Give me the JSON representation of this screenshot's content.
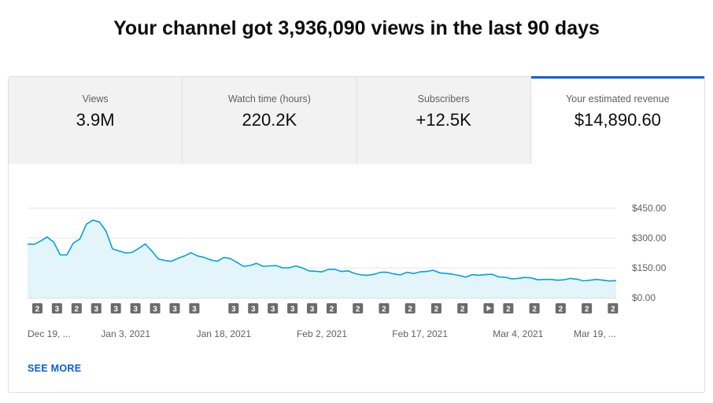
{
  "headline": "Your channel got 3,936,090 views in the last 90 days",
  "tabs": [
    {
      "label": "Views",
      "value": "3.9M",
      "active": false
    },
    {
      "label": "Watch time (hours)",
      "value": "220.2K",
      "active": false
    },
    {
      "label": "Subscribers",
      "value": "+12.5K",
      "active": false
    },
    {
      "label": "Your estimated revenue",
      "value": "$14,890.60",
      "active": true
    }
  ],
  "chart_data": {
    "type": "area",
    "title": "",
    "xlabel": "",
    "ylabel": "",
    "ylim": [
      0,
      450
    ],
    "y_ticks": [
      "$450.00",
      "$300.00",
      "$150.00",
      "$0.00"
    ],
    "y_tick_values": [
      450,
      300,
      150,
      0
    ],
    "x_tick_labels": [
      "Dec 19, ...",
      "Jan 3, 2021",
      "Jan 18, 2021",
      "Feb 2, 2021",
      "Feb 17, 2021",
      "Mar 4, 2021",
      "Mar 19, ..."
    ],
    "x_tick_days": [
      0,
      15,
      30,
      45,
      60,
      75,
      90
    ],
    "series": [
      {
        "name": "",
        "color": "#00a4d6",
        "fill": "#e3f4fa",
        "values": [
          270,
          268,
          285,
          305,
          280,
          215,
          215,
          275,
          295,
          370,
          390,
          380,
          335,
          245,
          235,
          225,
          228,
          248,
          270,
          235,
          195,
          187,
          183,
          198,
          210,
          226,
          210,
          203,
          190,
          183,
          202,
          197,
          178,
          158,
          162,
          173,
          158,
          160,
          162,
          150,
          150,
          160,
          150,
          135,
          133,
          130,
          143,
          143,
          132,
          135,
          122,
          115,
          113,
          118,
          128,
          128,
          120,
          115,
          128,
          122,
          130,
          132,
          138,
          125,
          122,
          118,
          112,
          104,
          116,
          113,
          116,
          118,
          105,
          103,
          95,
          97,
          102,
          100,
          90,
          92,
          92,
          88,
          90,
          97,
          93,
          85,
          88,
          92,
          88,
          84,
          86
        ]
      }
    ],
    "annotations": [
      {
        "day": 1.5,
        "label": "2"
      },
      {
        "day": 4.5,
        "label": "3"
      },
      {
        "day": 7.5,
        "label": "2"
      },
      {
        "day": 10.5,
        "label": "3"
      },
      {
        "day": 13.5,
        "label": "3"
      },
      {
        "day": 16.5,
        "label": "3"
      },
      {
        "day": 19.5,
        "label": "3"
      },
      {
        "day": 22.5,
        "label": "3"
      },
      {
        "day": 25.5,
        "label": "3"
      },
      {
        "day": 31.5,
        "label": "3"
      },
      {
        "day": 34.5,
        "label": "3"
      },
      {
        "day": 37.5,
        "label": "3"
      },
      {
        "day": 40.5,
        "label": "3"
      },
      {
        "day": 43.5,
        "label": "3"
      },
      {
        "day": 46.5,
        "label": "2"
      },
      {
        "day": 50.5,
        "label": "2"
      },
      {
        "day": 54.5,
        "label": "2"
      },
      {
        "day": 58.5,
        "label": "2"
      },
      {
        "day": 62.5,
        "label": "2"
      },
      {
        "day": 66.5,
        "label": "2"
      },
      {
        "day": 70.5,
        "label": "",
        "icon": "play-icon"
      },
      {
        "day": 73.5,
        "label": "2"
      },
      {
        "day": 77.5,
        "label": "2"
      },
      {
        "day": 81.5,
        "label": "2"
      },
      {
        "day": 85.5,
        "label": "2"
      },
      {
        "day": 89.5,
        "label": "2"
      }
    ]
  },
  "footer": {
    "see_more_label": "SEE MORE"
  }
}
